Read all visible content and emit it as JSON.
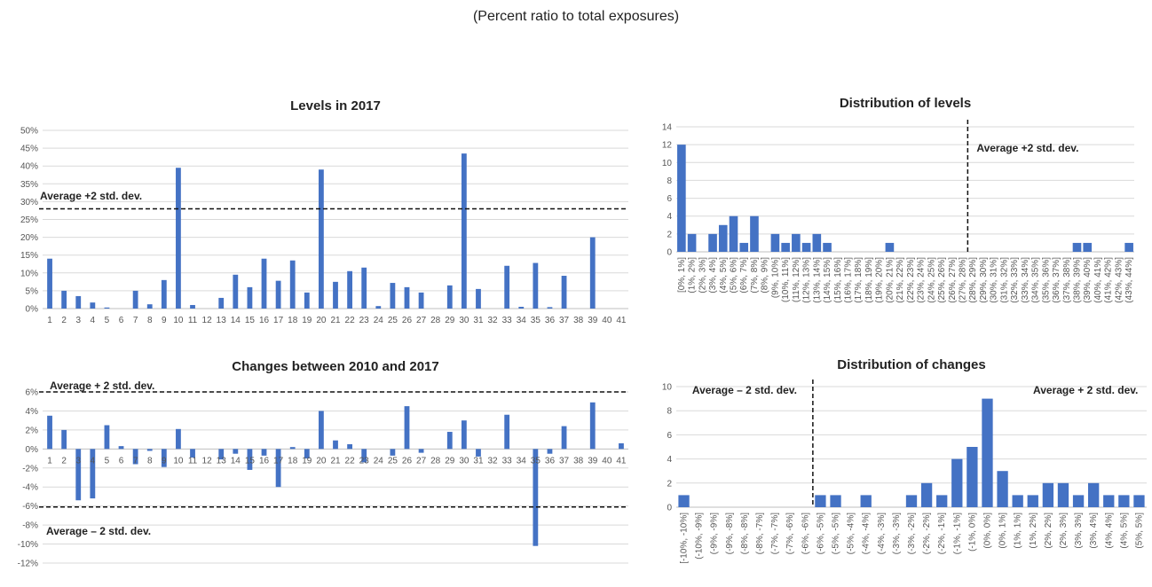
{
  "page": {
    "subtitle": "(Percent ratio to total exposures)"
  },
  "colors": {
    "bar": "#4472c4",
    "grid": "#d9d9d9",
    "refline": "#111111"
  },
  "chart_data": [
    {
      "type": "bar",
      "title": "Levels in 2017",
      "xlabel": "",
      "ylabel": "",
      "categories": [
        "1",
        "2",
        "3",
        "4",
        "5",
        "6",
        "7",
        "8",
        "9",
        "10",
        "11",
        "12",
        "13",
        "14",
        "15",
        "16",
        "17",
        "18",
        "19",
        "20",
        "21",
        "22",
        "23",
        "24",
        "25",
        "26",
        "27",
        "28",
        "29",
        "30",
        "31",
        "32",
        "33",
        "34",
        "35",
        "36",
        "37",
        "38",
        "39",
        "40",
        "41"
      ],
      "values": [
        14,
        5,
        3.5,
        1.7,
        0.3,
        0,
        5,
        1.2,
        8,
        39.5,
        1,
        0,
        3,
        9.5,
        6,
        14,
        7.8,
        13.5,
        4.5,
        39,
        7.5,
        10.5,
        11.5,
        0.7,
        7.2,
        6,
        4.5,
        0,
        6.5,
        43.5,
        5.5,
        0,
        12,
        0.5,
        12.8,
        0.4,
        9.2,
        0,
        20,
        0,
        0
      ],
      "ylim": [
        0,
        50
      ],
      "yticks": [
        "0%",
        "5%",
        "10%",
        "15%",
        "20%",
        "25%",
        "30%",
        "35%",
        "40%",
        "45%",
        "50%"
      ],
      "grid": true,
      "reference_lines": [
        {
          "label": "Average +2 std. dev.",
          "axis": "y",
          "value": 28
        }
      ]
    },
    {
      "type": "bar",
      "title": "Distribution of levels",
      "xlabel": "",
      "ylabel": "",
      "categories": [
        "[0%, 1%]",
        "(1%, 2%]",
        "(2%, 3%]",
        "(3%, 4%]",
        "(4%, 5%]",
        "(5%, 6%]",
        "(6%, 7%]",
        "(7%, 8%]",
        "(8%, 9%]",
        "(9%, 10%]",
        "(10%, 11%]",
        "(11%, 12%]",
        "(12%, 13%]",
        "(13%, 14%]",
        "(14%, 15%]",
        "(15%, 16%]",
        "(16%, 17%]",
        "(17%, 18%]",
        "(18%, 19%]",
        "(19%, 20%]",
        "(20%, 21%]",
        "(21%, 22%]",
        "(22%, 23%]",
        "(23%, 24%]",
        "(24%, 25%]",
        "(25%, 26%]",
        "(26%, 27%]",
        "(27%, 28%]",
        "(28%, 29%]",
        "(29%, 30%]",
        "(30%, 31%]",
        "(31%, 32%]",
        "(32%, 33%]",
        "(33%, 34%]",
        "(34%, 35%]",
        "(35%, 36%]",
        "(36%, 37%]",
        "(37%, 38%]",
        "(38%, 39%]",
        "(39%, 40%]",
        "(40%, 41%]",
        "(41%, 42%]",
        "(42%, 43%]",
        "(43%, 44%]"
      ],
      "values": [
        12,
        2,
        0,
        2,
        3,
        4,
        1,
        4,
        0,
        2,
        1,
        2,
        1,
        2,
        1,
        0,
        0,
        0,
        0,
        0,
        1,
        0,
        0,
        0,
        0,
        0,
        0,
        0,
        0,
        0,
        0,
        0,
        0,
        0,
        0,
        0,
        0,
        0,
        1,
        1,
        0,
        0,
        0,
        1
      ],
      "ylim": [
        0,
        14
      ],
      "yticks": [
        "0",
        "2",
        "4",
        "6",
        "8",
        "10",
        "12",
        "14"
      ],
      "grid": true,
      "reference_lines": [
        {
          "label": "Average +2 std. dev.",
          "axis": "x",
          "after_category_index": 27
        }
      ]
    },
    {
      "type": "bar",
      "title": "Changes between 2010 and 2017",
      "xlabel": "",
      "ylabel": "",
      "categories": [
        "1",
        "2",
        "3",
        "4",
        "5",
        "6",
        "7",
        "8",
        "9",
        "10",
        "11",
        "12",
        "13",
        "14",
        "15",
        "16",
        "17",
        "18",
        "19",
        "20",
        "21",
        "22",
        "23",
        "24",
        "25",
        "26",
        "27",
        "28",
        "29",
        "30",
        "31",
        "32",
        "33",
        "34",
        "35",
        "36",
        "37",
        "38",
        "39",
        "40",
        "41"
      ],
      "values": [
        3.5,
        2,
        -5.4,
        -5.2,
        2.5,
        0.3,
        -1.6,
        -0.2,
        -1.9,
        2.1,
        -0.9,
        0,
        -1.1,
        -0.5,
        -2.2,
        -0.7,
        -4,
        0.2,
        -1,
        4,
        0.9,
        0.5,
        -1.4,
        0,
        -0.7,
        4.5,
        -0.4,
        0,
        1.8,
        3,
        -0.8,
        0,
        3.6,
        0,
        -10.2,
        -0.5,
        2.4,
        0,
        4.9,
        0,
        0.6
      ],
      "ylim": [
        -12,
        6
      ],
      "yticks": [
        "-12%",
        "-10%",
        "-8%",
        "-6%",
        "-4%",
        "-2%",
        "0%",
        "2%",
        "4%",
        "6%"
      ],
      "grid": true,
      "reference_lines": [
        {
          "label": "Average + 2 std. dev.",
          "axis": "y",
          "value": 6
        },
        {
          "label": "Average – 2 std. dev.",
          "axis": "y",
          "value": -6.1
        }
      ]
    },
    {
      "type": "bar",
      "title": "Distribution of changes",
      "xlabel": "",
      "ylabel": "",
      "categories": [
        "[-10%, -10%]",
        "(-10%, -9%]",
        "(-9%, -9%]",
        "(-9%, -8%]",
        "(-8%, -8%]",
        "(-8%, -7%]",
        "(-7%, -7%]",
        "(-7%, -6%]",
        "(-6%, -6%]",
        "(-6%, -5%]",
        "(-5%, -5%]",
        "(-5%, -4%]",
        "(-4%, -4%]",
        "(-4%, -3%]",
        "(-3%, -3%]",
        "(-3%, -2%]",
        "(-2%, -2%]",
        "(-2%, -1%]",
        "(-1%, -1%]",
        "(-1%, 0%]",
        "(0%, 0%]",
        "(0%, 1%]",
        "(1%, 1%]",
        "(1%, 2%]",
        "(2%, 2%]",
        "(2%, 3%]",
        "(3%, 3%]",
        "(3%, 4%]",
        "(4%, 4%]",
        "(4%, 5%]",
        "(5%, 5%]"
      ],
      "values": [
        1,
        0,
        0,
        0,
        0,
        0,
        0,
        0,
        0,
        1,
        1,
        0,
        1,
        0,
        0,
        1,
        2,
        1,
        4,
        5,
        9,
        3,
        1,
        1,
        2,
        2,
        1,
        2,
        1,
        1,
        1
      ],
      "ylim": [
        0,
        10
      ],
      "yticks": [
        "0",
        "2",
        "4",
        "6",
        "8",
        "10"
      ],
      "grid": true,
      "reference_lines": [
        {
          "label": "Average – 2 std. dev.",
          "axis": "x",
          "after_category_index": 8
        },
        {
          "label": "Average + 2 std. dev.",
          "axis": "x",
          "after_category_index": 30
        }
      ]
    }
  ]
}
